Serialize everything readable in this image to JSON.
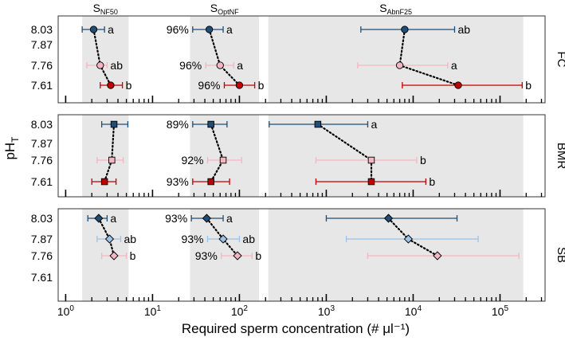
{
  "chart_data": {
    "type": "scatter",
    "xlabel": "Required sperm concentration (# μl⁻¹)",
    "x_scale": "log",
    "xlim": [
      0.82,
      330000
    ],
    "x_ticks": [
      {
        "value": 1,
        "base": "10",
        "exp": "0"
      },
      {
        "value": 10,
        "base": "10",
        "exp": "1"
      },
      {
        "value": 100,
        "base": "10",
        "exp": "2"
      },
      {
        "value": 1000,
        "base": "10",
        "exp": "3"
      },
      {
        "value": 10000,
        "base": "10",
        "exp": "4"
      },
      {
        "value": 100000,
        "base": "10",
        "exp": "5"
      }
    ],
    "ylabel": {
      "main": "pH",
      "sub": "T"
    },
    "y_categories": [
      "8.03",
      "7.87",
      "7.76",
      "7.61"
    ],
    "column_headers": [
      {
        "main": "S",
        "sub": "NF50"
      },
      {
        "main": "S",
        "sub": "OptNF"
      },
      {
        "main": "S",
        "sub": "AbnF25"
      }
    ],
    "shaded_bands": [
      {
        "metric": "NF50",
        "x_from": 1.55,
        "x_to": 5.3
      },
      {
        "metric": "OptNF",
        "x_from": 27,
        "x_to": 168
      },
      {
        "metric": "AbnF25",
        "x_from": 215,
        "x_to": 185000
      }
    ],
    "colors": {
      "8.03": "#1f4e79",
      "7.87": "#9dc3e6",
      "7.76": "#f4b6c2",
      "7.61": "#c00000"
    },
    "panels": [
      {
        "name": "FC",
        "marker": "circle",
        "series": [
          {
            "metric": "NF50",
            "points": [
              {
                "ph": "8.03",
                "x": 2.1,
                "lo": 1.55,
                "hi": 2.8,
                "label": "a"
              },
              {
                "ph": "7.76",
                "x": 2.5,
                "lo": 1.75,
                "hi": 3.0,
                "label": "ab"
              },
              {
                "ph": "7.61",
                "x": 3.3,
                "lo": 2.5,
                "hi": 4.5,
                "label": "b"
              }
            ]
          },
          {
            "metric": "OptNF",
            "points": [
              {
                "ph": "8.03",
                "x": 45,
                "lo": 29,
                "hi": 65,
                "label": "a",
                "pct": "96%"
              },
              {
                "ph": "7.76",
                "x": 60,
                "lo": 41,
                "hi": 86,
                "label": "a",
                "pct": "96%"
              },
              {
                "ph": "7.61",
                "x": 100,
                "lo": 67,
                "hi": 150,
                "label": "b",
                "pct": "96%"
              }
            ]
          },
          {
            "metric": "AbnF25",
            "points": [
              {
                "ph": "8.03",
                "x": 8000,
                "lo": 2500,
                "hi": 30000,
                "label": "ab"
              },
              {
                "ph": "7.76",
                "x": 7000,
                "lo": 2300,
                "hi": 25000,
                "label": "a"
              },
              {
                "ph": "7.61",
                "x": 33000,
                "lo": 7500,
                "hi": 180000,
                "label": "b"
              }
            ]
          }
        ]
      },
      {
        "name": "BMR",
        "marker": "square",
        "series": [
          {
            "metric": "NF50",
            "points": [
              {
                "ph": "8.03",
                "x": 3.6,
                "lo": 2.6,
                "hi": 5.2,
                "label": ""
              },
              {
                "ph": "7.76",
                "x": 3.4,
                "lo": 2.3,
                "hi": 4.6,
                "label": ""
              },
              {
                "ph": "7.61",
                "x": 2.8,
                "lo": 2.0,
                "hi": 3.8,
                "label": ""
              }
            ]
          },
          {
            "metric": "OptNF",
            "points": [
              {
                "ph": "8.03",
                "x": 47,
                "lo": 29,
                "hi": 72,
                "label": "",
                "pct": "89%"
              },
              {
                "ph": "7.76",
                "x": 65,
                "lo": 43,
                "hi": 106,
                "label": "",
                "pct": "92%"
              },
              {
                "ph": "7.61",
                "x": 47,
                "lo": 29,
                "hi": 77,
                "label": "",
                "pct": "93%"
              }
            ]
          },
          {
            "metric": "AbnF25",
            "points": [
              {
                "ph": "8.03",
                "x": 800,
                "lo": 220,
                "hi": 3000,
                "label": "a"
              },
              {
                "ph": "7.76",
                "x": 3300,
                "lo": 760,
                "hi": 11000,
                "label": "b"
              },
              {
                "ph": "7.61",
                "x": 3300,
                "lo": 760,
                "hi": 14000,
                "label": "b"
              }
            ]
          }
        ]
      },
      {
        "name": "SB",
        "marker": "diamond",
        "series": [
          {
            "metric": "NF50",
            "points": [
              {
                "ph": "8.03",
                "x": 2.4,
                "lo": 1.8,
                "hi": 3.0,
                "label": "a"
              },
              {
                "ph": "7.87",
                "x": 3.2,
                "lo": 2.3,
                "hi": 4.3,
                "label": "ab"
              },
              {
                "ph": "7.76",
                "x": 3.6,
                "lo": 2.6,
                "hi": 5.0,
                "label": "b"
              }
            ]
          },
          {
            "metric": "OptNF",
            "points": [
              {
                "ph": "8.03",
                "x": 42,
                "lo": 28,
                "hi": 65,
                "label": "a",
                "pct": "93%"
              },
              {
                "ph": "7.87",
                "x": 65,
                "lo": 43,
                "hi": 100,
                "label": "ab",
                "pct": "93%"
              },
              {
                "ph": "7.76",
                "x": 95,
                "lo": 62,
                "hi": 140,
                "label": "b",
                "pct": "93%"
              }
            ]
          },
          {
            "metric": "AbnF25",
            "points": [
              {
                "ph": "8.03",
                "x": 5200,
                "lo": 1000,
                "hi": 32000,
                "label": ""
              },
              {
                "ph": "7.87",
                "x": 8800,
                "lo": 1700,
                "hi": 56000,
                "label": ""
              },
              {
                "ph": "7.76",
                "x": 19000,
                "lo": 3000,
                "hi": 165000,
                "label": ""
              }
            ]
          }
        ]
      }
    ]
  }
}
